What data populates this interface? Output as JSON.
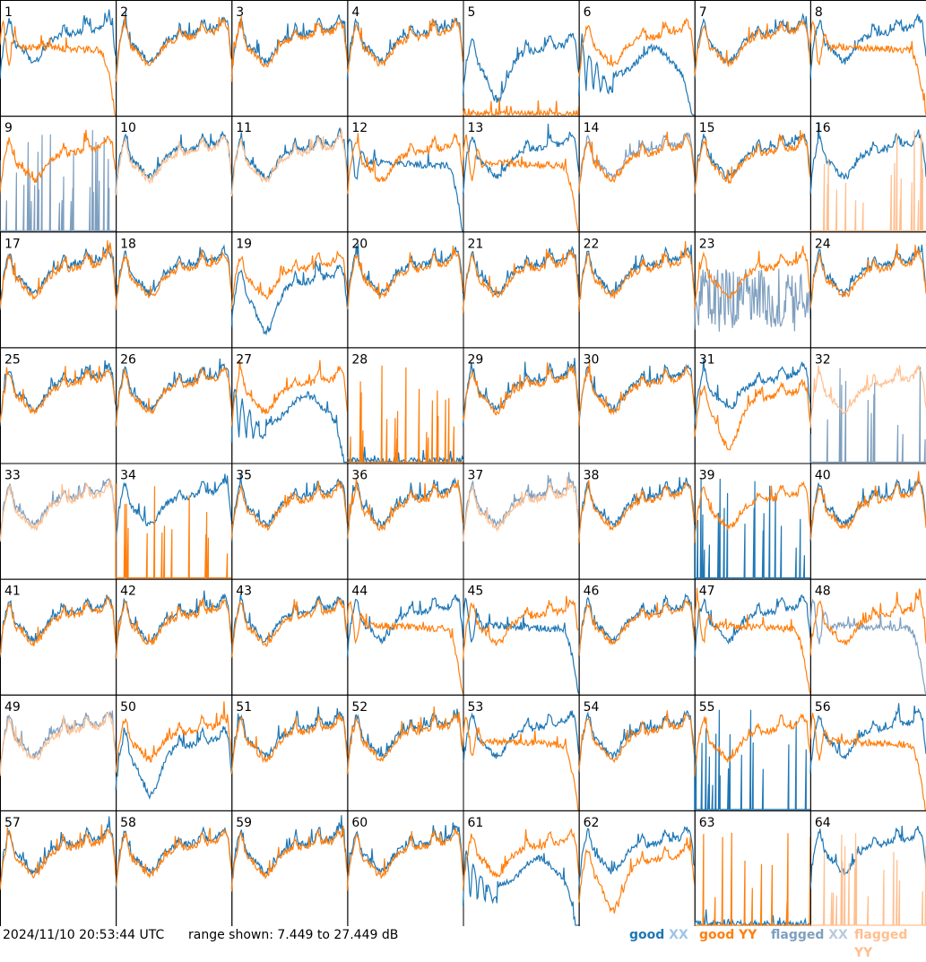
{
  "chart_data": {
    "type": "line",
    "panel_count": 64,
    "columns": 8,
    "rows": 8,
    "panel_labels": [
      "1",
      "2",
      "3",
      "4",
      "5",
      "6",
      "7",
      "8",
      "9",
      "10",
      "11",
      "12",
      "13",
      "14",
      "15",
      "16",
      "17",
      "18",
      "19",
      "20",
      "21",
      "22",
      "23",
      "24",
      "25",
      "26",
      "27",
      "28",
      "29",
      "30",
      "31",
      "32",
      "33",
      "34",
      "35",
      "36",
      "37",
      "38",
      "39",
      "40",
      "41",
      "42",
      "43",
      "44",
      "45",
      "46",
      "47",
      "48",
      "49",
      "50",
      "51",
      "52",
      "53",
      "54",
      "55",
      "56",
      "57",
      "58",
      "59",
      "60",
      "61",
      "62",
      "63",
      "64"
    ],
    "ylim_db": [
      7.449,
      27.449
    ],
    "series": [
      {
        "name": "good XX",
        "color": "#1f77b4"
      },
      {
        "name": "good YY",
        "color": "#ff7f0e"
      },
      {
        "name": "flagged XX",
        "color": "#7f9fbf"
      },
      {
        "name": "flagged YY",
        "color": "#ffbf8f"
      }
    ],
    "panels": {
      "1": {
        "xx": "good",
        "yy": "good",
        "yy_shape": "droop"
      },
      "5": {
        "xx": "good",
        "yy": "good",
        "xx_shape": "deepdip",
        "yy_shape": "low"
      },
      "6": {
        "xx": "good",
        "yy": "good",
        "xx_shape": "hump"
      },
      "8": {
        "xx": "good",
        "yy": "good",
        "yy_shape": "droop"
      },
      "9": {
        "xx": "flagged",
        "yy": "good",
        "xx_shape": "spikes"
      },
      "10": {
        "xx": "good",
        "yy": "flagged"
      },
      "11": {
        "xx": "good",
        "yy": "flagged"
      },
      "12": {
        "xx": "good",
        "yy": "good",
        "xx_shape": "droop"
      },
      "13": {
        "xx": "good",
        "yy": "good",
        "yy_shape": "droop"
      },
      "14": {
        "xx": "flagged",
        "yy": "good"
      },
      "16": {
        "xx": "good",
        "yy": "flagged",
        "yy_shape": "spikes"
      },
      "19": {
        "xx": "good",
        "yy": "good",
        "xx_shape": "deepdip"
      },
      "23": {
        "xx": "flagged",
        "yy": "good",
        "xx_shape": "noise"
      },
      "27": {
        "xx": "good",
        "yy": "good",
        "xx_shape": "hump"
      },
      "28": {
        "xx": "good",
        "yy": "good",
        "xx_shape": "low",
        "yy_shape": "spikes"
      },
      "31": {
        "xx": "good",
        "yy": "good",
        "yy_shape": "deepdip"
      },
      "32": {
        "xx": "flagged",
        "yy": "flagged",
        "xx_shape": "spikes"
      },
      "33": {
        "xx": "flagged",
        "yy": "flagged"
      },
      "34": {
        "xx": "good",
        "yy": "good",
        "yy_shape": "spikes"
      },
      "37": {
        "xx": "flagged",
        "yy": "flagged"
      },
      "39": {
        "xx": "good",
        "yy": "good",
        "xx_shape": "spikes"
      },
      "44": {
        "xx": "good",
        "yy": "good",
        "yy_shape": "droop"
      },
      "45": {
        "xx": "good",
        "yy": "good",
        "xx_shape": "droop"
      },
      "47": {
        "xx": "good",
        "yy": "good",
        "yy_shape": "droop"
      },
      "48": {
        "xx": "flagged",
        "yy": "good",
        "xx_shape": "droop"
      },
      "49": {
        "xx": "flagged",
        "yy": "flagged"
      },
      "50": {
        "xx": "good",
        "yy": "good",
        "xx_shape": "deepdip"
      },
      "53": {
        "xx": "good",
        "yy": "good",
        "yy_shape": "droop"
      },
      "55": {
        "xx": "good",
        "yy": "good",
        "xx_shape": "spikes"
      },
      "56": {
        "xx": "good",
        "yy": "good",
        "yy_shape": "droop"
      },
      "61": {
        "xx": "good",
        "yy": "good",
        "xx_shape": "hump"
      },
      "62": {
        "xx": "good",
        "yy": "good",
        "yy_shape": "deepdip"
      },
      "63": {
        "xx": "good",
        "yy": "good",
        "xx_shape": "low",
        "yy_shape": "spikes"
      },
      "64": {
        "xx": "good",
        "yy": "flagged",
        "yy_shape": "spikes"
      }
    }
  },
  "footer": {
    "timestamp": "2024/11/10 20:53:44 UTC",
    "range_text": "range shown: 7.449 to 27.449 dB",
    "legend": {
      "good_word": "good",
      "flagged_word": "flagged",
      "xx": "XX",
      "yy": "YY"
    }
  }
}
